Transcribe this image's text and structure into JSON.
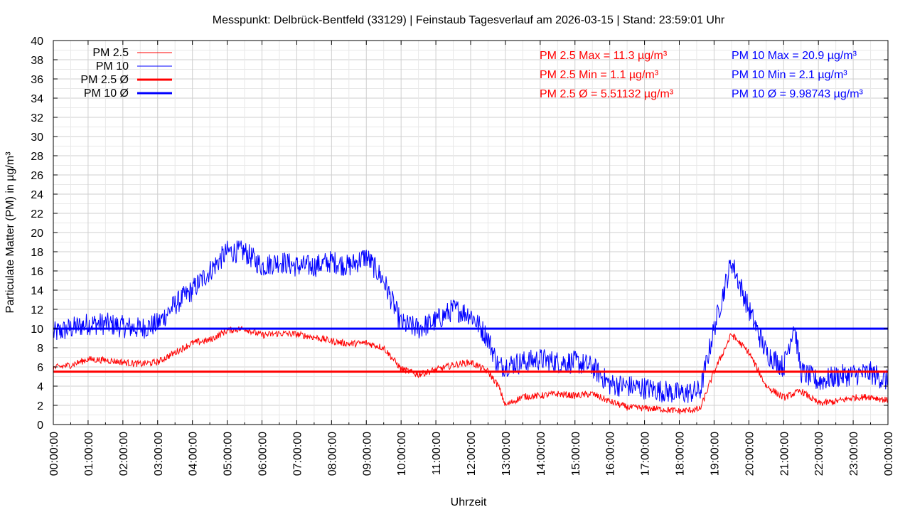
{
  "chart_data": {
    "type": "line",
    "title": "Messpunkt: Delbrück-Bentfeld (33129) | Feinstaub Tagesverlauf am 2026-03-15 | Stand: 23:59:01 Uhr",
    "xlabel": "Uhrzeit",
    "ylabel": "Particulate Matter (PM) in µg/m³",
    "xlim": [
      0,
      24
    ],
    "ylim": [
      0,
      40
    ],
    "grid": true,
    "legend_position": "top-left",
    "x_ticks": [
      "00:00:00",
      "01:00:00",
      "02:00:00",
      "03:00:00",
      "04:00:00",
      "05:00:00",
      "06:00:00",
      "07:00:00",
      "08:00:00",
      "09:00:00",
      "10:00:00",
      "11:00:00",
      "12:00:00",
      "13:00:00",
      "14:00:00",
      "15:00:00",
      "16:00:00",
      "17:00:00",
      "18:00:00",
      "19:00:00",
      "20:00:00",
      "21:00:00",
      "22:00:00",
      "23:00:00",
      "00:00:00"
    ],
    "y_ticks": [
      "0",
      "2",
      "4",
      "6",
      "8",
      "10",
      "12",
      "14",
      "16",
      "18",
      "20",
      "22",
      "24",
      "26",
      "28",
      "30",
      "32",
      "34",
      "36",
      "38",
      "40"
    ],
    "series": [
      {
        "name": "PM 2.5",
        "color": "#ff0000",
        "x_hours": [
          0,
          0.5,
          1,
          1.5,
          2,
          2.5,
          3,
          3.5,
          4,
          4.5,
          5,
          5.5,
          6,
          6.5,
          7,
          7.5,
          8,
          8.5,
          9,
          9.5,
          10,
          10.5,
          11,
          11.5,
          12,
          12.5,
          12.8,
          13,
          13.5,
          14,
          14.5,
          15,
          15.5,
          16,
          16.5,
          17,
          17.5,
          18,
          18.6,
          19,
          19.5,
          20,
          20.5,
          21,
          21.5,
          22,
          22.5,
          23,
          23.5,
          24
        ],
        "values": [
          5.9,
          6.2,
          6.8,
          6.7,
          6.5,
          6.3,
          6.5,
          7.5,
          8.5,
          8.8,
          9.8,
          10,
          9.3,
          9.5,
          9.4,
          9.1,
          8.7,
          8.4,
          8.5,
          8,
          5.8,
          5.2,
          5.7,
          6.2,
          6.5,
          5.5,
          4,
          2,
          2.9,
          3,
          3.2,
          3,
          3.2,
          2.4,
          1.8,
          1.7,
          1.6,
          1.4,
          1.6,
          5.5,
          9.4,
          7.5,
          4,
          2.8,
          3.5,
          2.2,
          2.4,
          2.8,
          2.9,
          2.5
        ],
        "max": "PM 2.5 Max = 11.3 µg/m³",
        "min": "PM 2.5 Min = 1.1 µg/m³",
        "avg": "PM 2.5 Ø = 5.51132 µg/m³"
      },
      {
        "name": "PM 10",
        "color": "#0000ff",
        "x_hours": [
          0,
          0.5,
          1,
          1.5,
          2,
          2.5,
          3,
          3.5,
          4,
          4.5,
          5,
          5.5,
          6,
          6.5,
          7,
          7.5,
          8,
          8.5,
          9,
          9.5,
          10,
          10.5,
          11,
          11.5,
          12,
          12.5,
          12.8,
          13,
          13.5,
          14,
          14.5,
          15,
          15.5,
          16,
          16.5,
          17,
          17.5,
          18,
          18.6,
          19,
          19.5,
          20,
          20.5,
          21,
          21.3,
          21.5,
          22,
          22.5,
          23,
          23.5,
          24
        ],
        "values": [
          9.5,
          10,
          10.5,
          10.5,
          10.2,
          10,
          10.5,
          12.5,
          14,
          16,
          18,
          18,
          16.5,
          17,
          16.5,
          16.5,
          17,
          16.5,
          17.5,
          15,
          10.5,
          10,
          10.8,
          12,
          11.5,
          9,
          6,
          6.2,
          6.5,
          6.8,
          6.5,
          6.5,
          6,
          4.2,
          4,
          3.8,
          3.5,
          3.2,
          3.5,
          10,
          17,
          12,
          7.5,
          6,
          10.5,
          5.5,
          4.5,
          5,
          5.2,
          5.4,
          4.5
        ],
        "max": "PM 10 Max = 20.9 µg/m³",
        "min": "PM 10 Min = 2.1 µg/m³",
        "avg": "PM 10 Ø = 9.98743 µg/m³"
      },
      {
        "name": "PM 2.5 Ø",
        "color": "#ff0000",
        "constant": 5.51132
      },
      {
        "name": "PM 10 Ø",
        "color": "#0000ff",
        "constant": 9.98743
      }
    ]
  }
}
